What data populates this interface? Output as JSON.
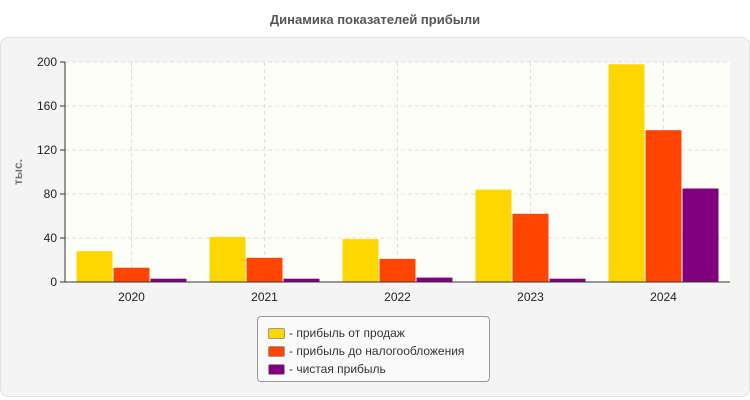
{
  "chart_data": {
    "type": "bar",
    "title": "Динамика показателей прибыли",
    "ylabel": "тыс.",
    "xlabel": "",
    "categories": [
      "2020",
      "2021",
      "2022",
      "2023",
      "2024"
    ],
    "ylim": [
      0,
      200
    ],
    "yticks": [
      0,
      40,
      80,
      120,
      160,
      200
    ],
    "grid": true,
    "legend_position": "bottom",
    "series": [
      {
        "name": "- прибыль от продаж",
        "color": "#FFD700",
        "values": [
          28,
          41,
          39,
          84,
          198
        ]
      },
      {
        "name": "- прибыль до налогообложения",
        "color": "#FF4500",
        "values": [
          13,
          22,
          21,
          62,
          138
        ]
      },
      {
        "name": "- чистая прибыль",
        "color": "#800080",
        "values": [
          3,
          3,
          4,
          3,
          85
        ]
      }
    ]
  }
}
